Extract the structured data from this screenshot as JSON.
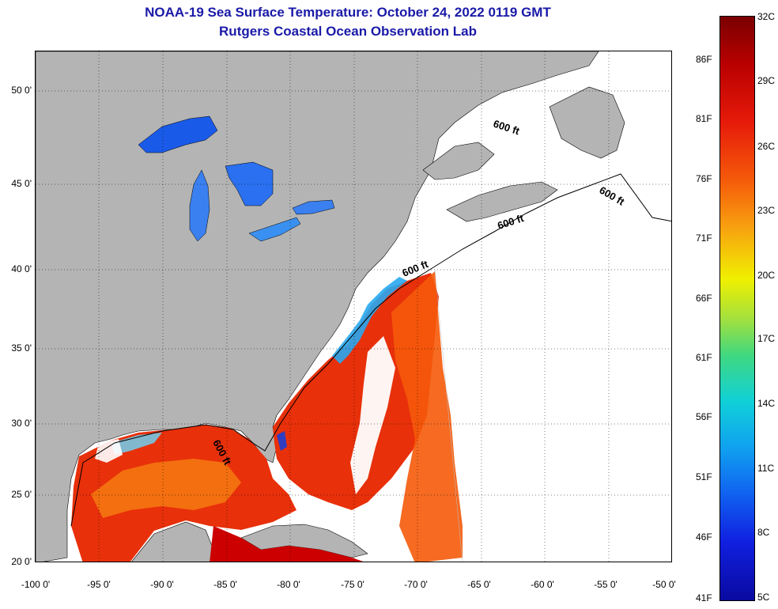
{
  "header": {
    "title": "NOAA-19 Sea Surface Temperature:  October 24, 2022 0119 GMT",
    "subtitle": "Rutgers Coastal Ocean Observation Lab"
  },
  "map": {
    "projection": "lat-lon",
    "lon_range": [
      -100,
      -50
    ],
    "lat_range": [
      20,
      52
    ],
    "isobath_labels": [
      "600 ft",
      "600 ft",
      "600 ft",
      "600 ft"
    ],
    "lat_ticks": [
      {
        "value": 50,
        "label": "50 0'"
      },
      {
        "value": 45,
        "label": "45 0'"
      },
      {
        "value": 40,
        "label": "40 0'"
      },
      {
        "value": 35,
        "label": "35 0'"
      },
      {
        "value": 30,
        "label": "30 0'"
      },
      {
        "value": 25,
        "label": "25 0'"
      },
      {
        "value": 20,
        "label": "20 0'"
      }
    ],
    "lon_ticks": [
      {
        "value": -100,
        "label": "-100 0'"
      },
      {
        "value": -95,
        "label": "-95 0'"
      },
      {
        "value": -90,
        "label": "-90 0'"
      },
      {
        "value": -85,
        "label": "-85 0'"
      },
      {
        "value": -80,
        "label": "-80 0'"
      },
      {
        "value": -75,
        "label": "-75 0'"
      },
      {
        "value": -70,
        "label": "-70 0'"
      },
      {
        "value": -65,
        "label": "-65 0'"
      },
      {
        "value": -60,
        "label": "-60 0'"
      },
      {
        "value": -55,
        "label": "-55 0'"
      },
      {
        "value": -50,
        "label": "-50 0'"
      }
    ],
    "colors": {
      "land": "#b4b4b4",
      "no_data": "#ffffff",
      "warm": "#e8300a",
      "hot": "#cc0000",
      "mid": "#f57a10",
      "cool": "#28a8f0",
      "cold": "#1040e0"
    }
  },
  "colorbar": {
    "fahrenheit_labels": [
      "86F",
      "81F",
      "76F",
      "71F",
      "66F",
      "61F",
      "56F",
      "51F",
      "46F",
      "41F"
    ],
    "celsius_labels": [
      "32C",
      "29C",
      "26C",
      "23C",
      "20C",
      "17C",
      "14C",
      "11C",
      "8C",
      "5C"
    ]
  }
}
